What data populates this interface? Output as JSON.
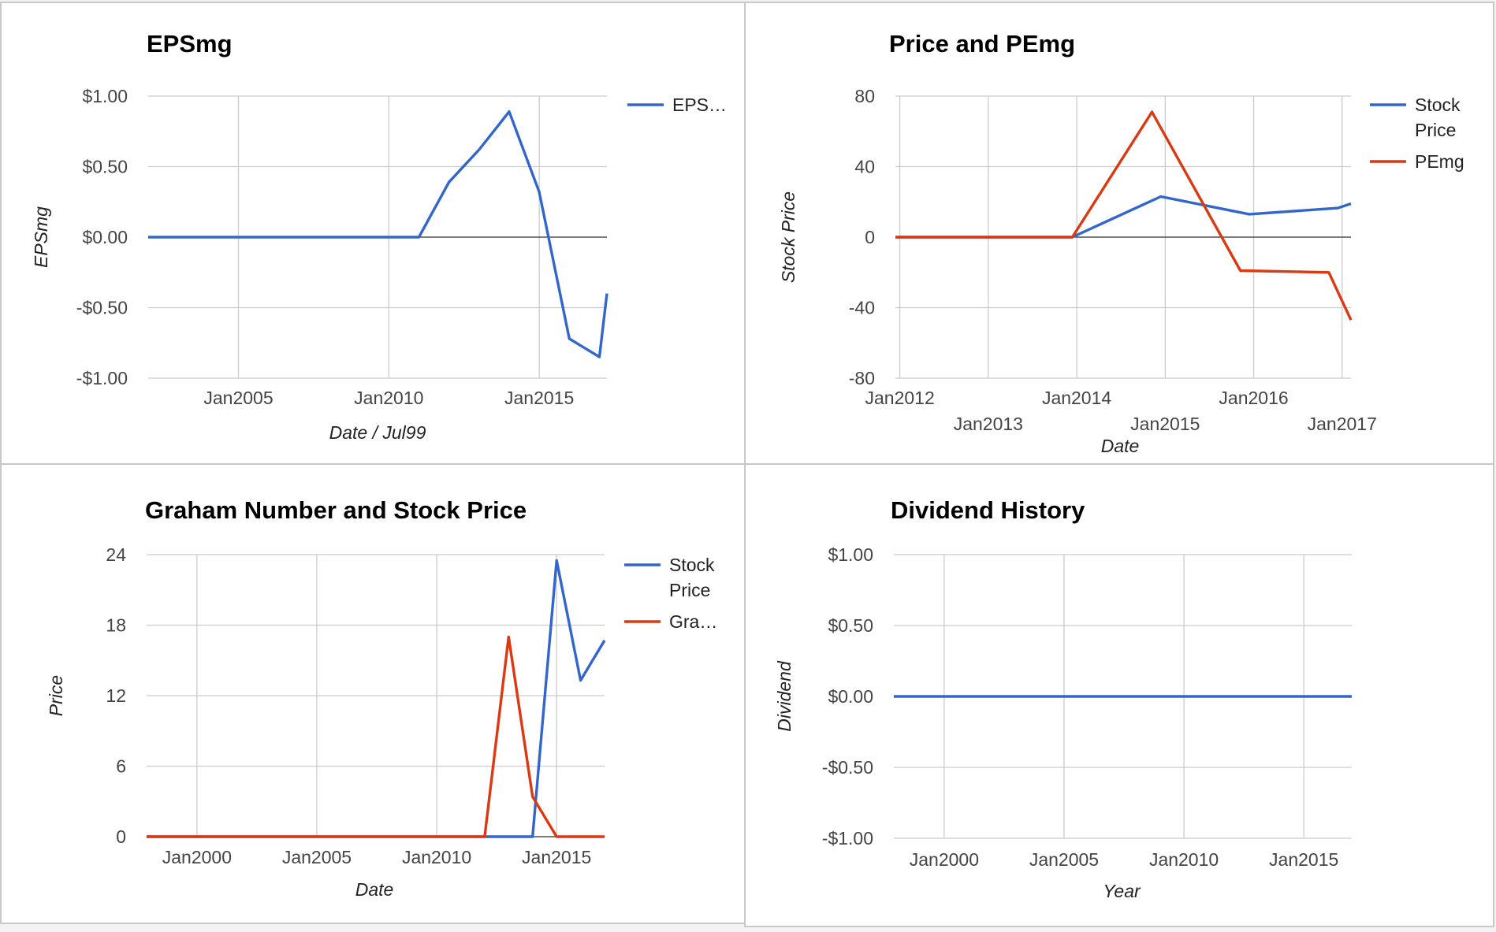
{
  "colors": {
    "blue": "#3366cc",
    "red": "#dc3912",
    "grid": "#cccccc",
    "zero": "#333333"
  },
  "chart_data": [
    {
      "type": "line",
      "title": "EPSmg",
      "xlabel": "Date / Jul99",
      "ylabel": "EPSmg",
      "xlim": [
        2002.0,
        2017.25
      ],
      "ylim": [
        -1.0,
        1.0
      ],
      "x_ticks": [
        {
          "v": 2005,
          "label": "Jan2005"
        },
        {
          "v": 2010,
          "label": "Jan2010"
        },
        {
          "v": 2015,
          "label": "Jan2015"
        }
      ],
      "y_ticks": [
        {
          "v": 1.0,
          "label": "$1.00"
        },
        {
          "v": 0.5,
          "label": "$0.50"
        },
        {
          "v": 0.0,
          "label": "$0.00"
        },
        {
          "v": -0.5,
          "label": "-$0.50"
        },
        {
          "v": -1.0,
          "label": "-$1.00"
        }
      ],
      "zero_line": true,
      "legend_position": "right",
      "series": [
        {
          "name": "EPS…",
          "color": "#3366cc",
          "x": [
            2002.0,
            2011.0,
            2012.0,
            2013.0,
            2014.0,
            2015.0,
            2016.0,
            2017.0,
            2017.25
          ],
          "y": [
            0.0,
            0.0,
            0.39,
            0.62,
            0.89,
            0.32,
            -0.72,
            -0.85,
            -0.4
          ]
        }
      ]
    },
    {
      "type": "line",
      "title": "Price and PEmg",
      "xlabel": "Date",
      "ylabel": "Stock Price",
      "xlim": [
        2011.95,
        2017.1
      ],
      "ylim": [
        -80,
        80
      ],
      "x_ticks": [
        {
          "v": 2012,
          "label": "Jan2012",
          "row": 0
        },
        {
          "v": 2013,
          "label": "Jan2013",
          "row": 1
        },
        {
          "v": 2014,
          "label": "Jan2014",
          "row": 0
        },
        {
          "v": 2015,
          "label": "Jan2015",
          "row": 1
        },
        {
          "v": 2016,
          "label": "Jan2016",
          "row": 0
        },
        {
          "v": 2017,
          "label": "Jan2017",
          "row": 1
        }
      ],
      "y_ticks": [
        {
          "v": 80,
          "label": "80"
        },
        {
          "v": 40,
          "label": "40"
        },
        {
          "v": 0,
          "label": "0"
        },
        {
          "v": -40,
          "label": "-40"
        },
        {
          "v": -80,
          "label": "-80"
        }
      ],
      "zero_line": true,
      "legend_position": "right",
      "series": [
        {
          "name": "Stock Price",
          "color": "#3366cc",
          "x": [
            2011.95,
            2013.95,
            2014.95,
            2015.95,
            2016.95,
            2017.1
          ],
          "y": [
            0,
            0,
            23,
            13,
            16.5,
            19
          ]
        },
        {
          "name": "PEmg",
          "color": "#dc3912",
          "x": [
            2011.95,
            2013.95,
            2014.85,
            2015.85,
            2016.85,
            2017.1
          ],
          "y": [
            0,
            0,
            71,
            -19,
            -20,
            -47
          ]
        }
      ]
    },
    {
      "type": "line",
      "title": "Graham Number and Stock Price",
      "xlabel": "Date",
      "ylabel": "Price",
      "xlim": [
        1997.9,
        2017.0
      ],
      "ylim": [
        0,
        24
      ],
      "x_ticks": [
        {
          "v": 2000,
          "label": "Jan2000"
        },
        {
          "v": 2005,
          "label": "Jan2005"
        },
        {
          "v": 2010,
          "label": "Jan2010"
        },
        {
          "v": 2015,
          "label": "Jan2015"
        }
      ],
      "y_ticks": [
        {
          "v": 24,
          "label": "24"
        },
        {
          "v": 18,
          "label": "18"
        },
        {
          "v": 12,
          "label": "12"
        },
        {
          "v": 6,
          "label": "6"
        },
        {
          "v": 0,
          "label": "0"
        }
      ],
      "zero_line": true,
      "legend_position": "right",
      "series": [
        {
          "name": "Stock Price",
          "color": "#3366cc",
          "x": [
            1997.9,
            2014.0,
            2015.0,
            2016.0,
            2017.0
          ],
          "y": [
            0,
            0,
            23.5,
            13.3,
            16.7
          ]
        },
        {
          "name": "Gra…",
          "color": "#dc3912",
          "x": [
            1997.9,
            2012.0,
            2013.0,
            2014.0,
            2015.0,
            2017.0
          ],
          "y": [
            0,
            0,
            17,
            3.4,
            0,
            0
          ]
        }
      ]
    },
    {
      "type": "line",
      "title": "Dividend History",
      "xlabel": "Year",
      "ylabel": "Dividend",
      "xlim": [
        1997.9,
        2017.0
      ],
      "ylim": [
        -1.0,
        1.0
      ],
      "x_ticks": [
        {
          "v": 2000,
          "label": "Jan2000"
        },
        {
          "v": 2005,
          "label": "Jan2005"
        },
        {
          "v": 2010,
          "label": "Jan2010"
        },
        {
          "v": 2015,
          "label": "Jan2015"
        }
      ],
      "y_ticks": [
        {
          "v": 1.0,
          "label": "$1.00"
        },
        {
          "v": 0.5,
          "label": "$0.50"
        },
        {
          "v": 0.0,
          "label": "$0.00"
        },
        {
          "v": -0.5,
          "label": "-$0.50"
        },
        {
          "v": -1.0,
          "label": "-$1.00"
        }
      ],
      "zero_line": false,
      "legend_position": "none",
      "series": [
        {
          "name": "",
          "color": "#3366cc",
          "x": [
            1997.9,
            2017.0
          ],
          "y": [
            0.0,
            0.0
          ]
        }
      ]
    }
  ]
}
